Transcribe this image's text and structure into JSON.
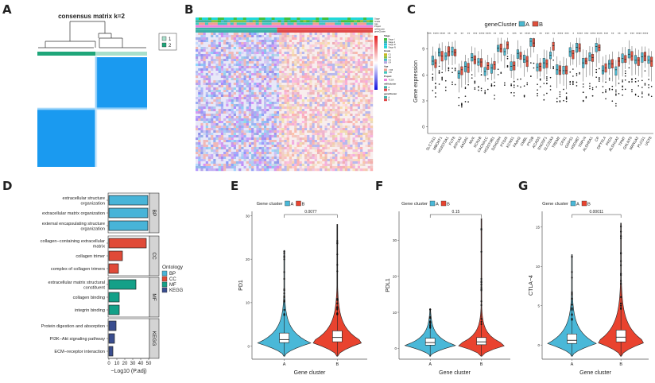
{
  "panels": {
    "A": "A",
    "B": "B",
    "C": "C",
    "D": "D",
    "E": "E",
    "F": "F",
    "G": "G"
  },
  "chart_data": [
    {
      "id": "A",
      "type": "heatmap",
      "title": "consensus matrix k=2",
      "legend": [
        {
          "label": "1",
          "color": "#a8e0cc"
        },
        {
          "label": "2",
          "color": "#1fa67a"
        }
      ],
      "clusters": [
        {
          "name": "2",
          "fraction": 0.53
        },
        {
          "name": "1",
          "fraction": 0.47
        }
      ],
      "colors": {
        "high": "#1a9af0",
        "low": "#ffffff"
      }
    },
    {
      "id": "B",
      "type": "heatmap",
      "annotation_tracks": [
        "Stage",
        "Grade",
        "Age",
        "Project",
        "m6Acluster",
        "geneCluster"
      ],
      "color_scale": {
        "min": -4,
        "max": 4,
        "low": "#1010e0",
        "mid": "#ffffff",
        "high": "#e41a1c"
      },
      "legend_groups": [
        {
          "title": "Stage",
          "items": [
            {
              "label": "Stage I",
              "color": "#40c040"
            },
            {
              "label": "Stage II",
              "color": "#3bb3a0"
            },
            {
              "label": "Stage III",
              "color": "#22c0e0"
            },
            {
              "label": "Stage IV",
              "color": "#20d8d8"
            }
          ]
        },
        {
          "title": "Grade",
          "items": [
            {
              "label": "G1",
              "color": "#c8b820"
            },
            {
              "label": "G2",
              "color": "#88c040"
            },
            {
              "label": "G3",
              "color": "#48b8c8"
            },
            {
              "label": "G4",
              "color": "#b8a8e0"
            }
          ]
        },
        {
          "title": "Age",
          "items": [
            {
              "label": "<=65",
              "color": "#f0a090"
            },
            {
              "label": ">65",
              "color": "#40c8c0"
            }
          ]
        },
        {
          "title": "Project",
          "items": [
            {
              "label": "TCGA",
              "color": "#f080e0"
            }
          ]
        },
        {
          "title": "m6Acluster",
          "items": [
            {
              "label": "A",
              "color": "#3bb0a8"
            },
            {
              "label": "B",
              "color": "#e04848"
            }
          ]
        },
        {
          "title": "geneCluster",
          "items": [
            {
              "label": "A",
              "color": "#3bb0a8"
            },
            {
              "label": "B",
              "color": "#e04848"
            }
          ]
        }
      ],
      "split_fraction": 0.46
    },
    {
      "id": "C",
      "type": "box",
      "legend_title": "geneCluster",
      "series": [
        {
          "name": "A",
          "color": "#4ab8d0"
        },
        {
          "name": "B",
          "color": "#e0503c"
        }
      ],
      "ylabel": "Gene expression",
      "xlabel": "",
      "ylim": [
        -0.5,
        11
      ],
      "yticks": [
        0,
        3,
        6,
        9
      ],
      "categories": [
        "SLC7A11",
        "MBOAT1",
        "HS3ST3A1",
        "FUT8",
        "ATP1A2",
        "AADAC",
        "MVK",
        "SCN1B",
        "CACNA1C",
        "HS3ST3B1",
        "D2HGDH",
        "PTGIS",
        "KCNS1",
        "FAAH2",
        "CMBL",
        "PYGB",
        "ACADS",
        "ENOSF1",
        "SLC22A3",
        "TREM2",
        "CPS1",
        "GGPS1",
        "HSD3B7",
        "TRPV4",
        "ALDH8A1",
        "CP",
        "DPYSL4",
        "PKD1",
        "ALDH1A2",
        "TPMT",
        "GALNT6",
        "MAN1A2",
        "PLCG1",
        "UGT8"
      ],
      "significance": [
        "***",
        "****",
        "****",
        "**",
        "**",
        "**",
        "**",
        "***",
        "****",
        "****",
        "**",
        "***",
        "*",
        "***",
        "**",
        "****",
        "***",
        "**",
        "***",
        "**",
        "****",
        "***",
        "*",
        "****",
        "***",
        "****",
        "****",
        "***",
        "**",
        "**",
        "**",
        "***",
        "****",
        "****"
      ],
      "medians_A": [
        7.6,
        8.6,
        8.2,
        8.7,
        6.2,
        7.0,
        8.0,
        7.5,
        6.4,
        6.8,
        9.1,
        8.7,
        7.0,
        8.5,
        7.8,
        9.9,
        6.9,
        7.4,
        8.3,
        6.6,
        6.5,
        8.7,
        9.2,
        7.4,
        8.2,
        9.3,
        6.5,
        7.3,
        6.6,
        7.9,
        8.4,
        7.7,
        8.1,
        7.7
      ],
      "medians_B": [
        7.4,
        8.2,
        8.7,
        8.6,
        6.6,
        6.9,
        7.8,
        7.5,
        7.1,
        7.2,
        9.0,
        9.5,
        7.1,
        8.2,
        7.6,
        9.7,
        7.0,
        7.3,
        9.4,
        6.5,
        6.5,
        8.5,
        9.1,
        7.6,
        8.0,
        9.2,
        6.8,
        7.3,
        7.6,
        7.8,
        8.2,
        7.7,
        8.2,
        7.6
      ]
    },
    {
      "id": "D",
      "type": "bar",
      "orientation": "horizontal",
      "xlabel": "−Log10 (P.adj)",
      "xlim": [
        0,
        50
      ],
      "xticks": [
        0,
        10,
        20,
        30,
        40,
        50
      ],
      "legend_title": "Ontology",
      "legend": [
        {
          "label": "BP",
          "color": "#48b4d8"
        },
        {
          "label": "CC",
          "color": "#e04a38"
        },
        {
          "label": "MF",
          "color": "#14a088"
        },
        {
          "label": "KEGG",
          "color": "#3a4d8f"
        }
      ],
      "groups": [
        {
          "name": "BP",
          "items": [
            {
              "term": "extracellular structure organization",
              "value": 49
            },
            {
              "term": "extracellular matrix organization",
              "value": 49
            },
            {
              "term": "external encapsulating structure organization",
              "value": 49
            }
          ]
        },
        {
          "name": "CC",
          "items": [
            {
              "term": "collagen−containing extracellular matrix",
              "value": 47
            },
            {
              "term": "collagen trimer",
              "value": 17
            },
            {
              "term": "complex of collagen trimers",
              "value": 12
            }
          ]
        },
        {
          "name": "MF",
          "items": [
            {
              "term": "extracellular matrix structural constituent",
              "value": 34
            },
            {
              "term": "collagen binding",
              "value": 13
            },
            {
              "term": "integrin binding",
              "value": 13
            }
          ]
        },
        {
          "name": "KEGG",
          "items": [
            {
              "term": "Protein digestion and absorption",
              "value": 9
            },
            {
              "term": "PI3K−Akt signaling pathway",
              "value": 7
            },
            {
              "term": "ECM−receptor interaction",
              "value": 5
            }
          ]
        }
      ]
    },
    {
      "id": "E",
      "type": "violin",
      "legend_title": "Gene cluster",
      "categories": [
        "A",
        "B"
      ],
      "colors": [
        "#4ab8d8",
        "#e9432f"
      ],
      "ylabel": "PD1",
      "xlabel": "Gene cluster",
      "ylim": [
        -3,
        31
      ],
      "yticks": [
        0,
        10,
        20,
        30
      ],
      "pvalue": "0.0077",
      "box": [
        {
          "q1": 0.8,
          "median": 1.5,
          "q3": 3.0,
          "max": 22
        },
        {
          "q1": 1.0,
          "median": 2.0,
          "q3": 3.5,
          "max": 28
        }
      ]
    },
    {
      "id": "F",
      "type": "violin",
      "legend_title": "Gene cluster",
      "categories": [
        "A",
        "B"
      ],
      "colors": [
        "#4ab8d8",
        "#e9432f"
      ],
      "ylabel": "PDL1",
      "xlabel": "Gene cluster",
      "ylim": [
        -3,
        38
      ],
      "yticks": [
        0,
        10,
        20,
        30
      ],
      "pvalue": "0.15",
      "box": [
        {
          "q1": 0.9,
          "median": 1.6,
          "q3": 2.8,
          "max": 11
        },
        {
          "q1": 1.0,
          "median": 1.8,
          "q3": 3.0,
          "max": 36
        }
      ]
    },
    {
      "id": "G",
      "type": "violin",
      "legend_title": "Gene cluster",
      "categories": [
        "A",
        "B"
      ],
      "colors": [
        "#4ab8d8",
        "#e9432f"
      ],
      "ylabel": "CTLA−4",
      "xlabel": "Gene cluster",
      "ylim": [
        -1.8,
        17
      ],
      "yticks": [
        0,
        5,
        10,
        15
      ],
      "pvalue": "0.00011",
      "box": [
        {
          "q1": 0.2,
          "median": 0.6,
          "q3": 1.4,
          "max": 11.5
        },
        {
          "q1": 0.4,
          "median": 1.0,
          "q3": 1.9,
          "max": 15.5
        }
      ]
    }
  ]
}
